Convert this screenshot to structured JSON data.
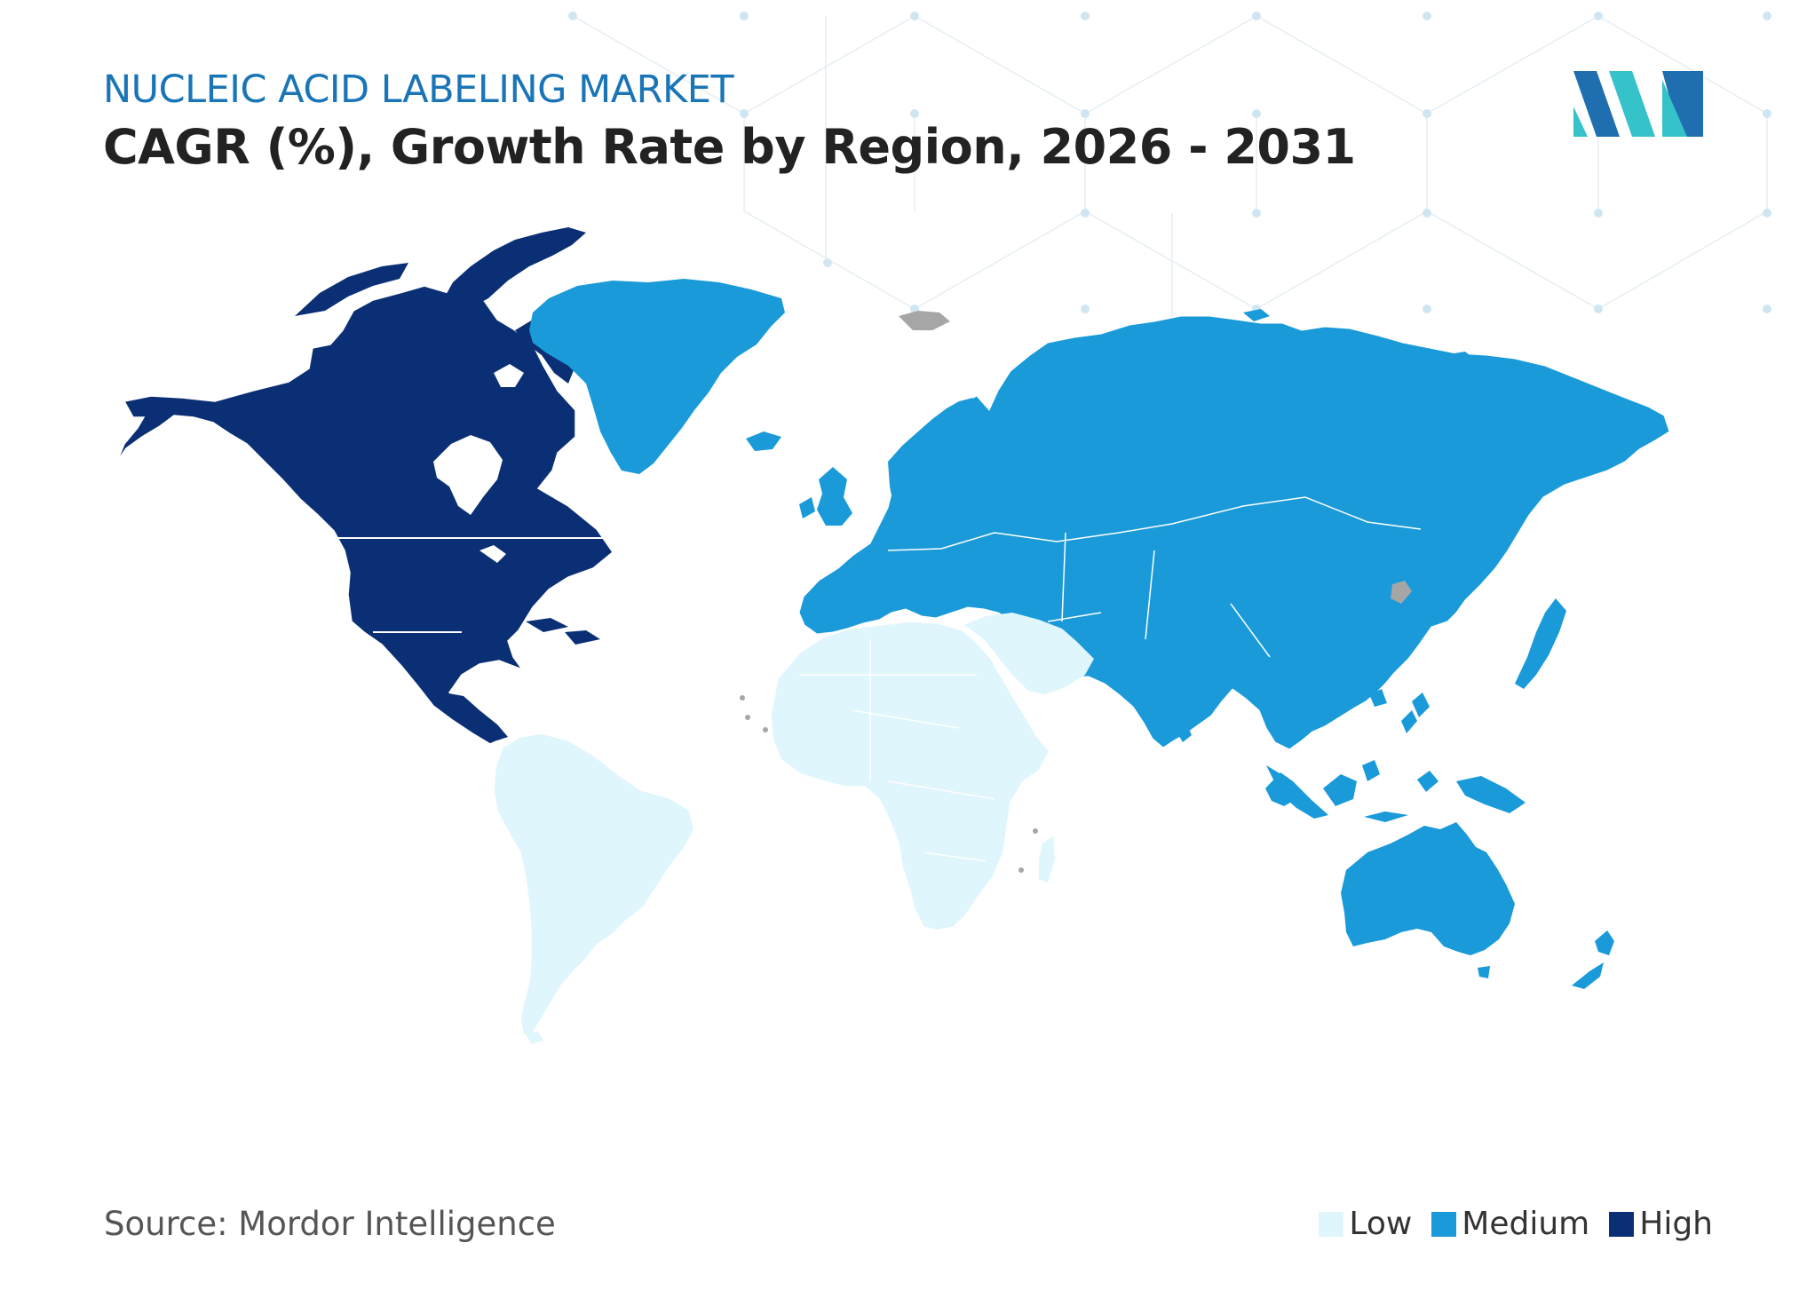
{
  "header": {
    "kicker": "NUCLEIC ACID LABELING MARKET",
    "title": "CAGR (%), Growth Rate by Region, 2026 - 2031"
  },
  "map": {
    "categories": [
      "Low",
      "Medium",
      "High"
    ],
    "colors": {
      "low": "#dff6fc",
      "medium": "#1a9ad9",
      "high": "#0b2f74",
      "no_data": "#a6a6a6",
      "border": "#ffffff"
    },
    "regions": [
      {
        "region": "North America",
        "level": "High"
      },
      {
        "region": "Greenland",
        "level": "Medium"
      },
      {
        "region": "Europe",
        "level": "Medium"
      },
      {
        "region": "Russia",
        "level": "Medium"
      },
      {
        "region": "Asia",
        "level": "Medium"
      },
      {
        "region": "Australia and New Zealand",
        "level": "Medium"
      },
      {
        "region": "South America",
        "level": "Low"
      },
      {
        "region": "Africa",
        "level": "Low"
      },
      {
        "region": "Middle East",
        "level": "Low"
      }
    ]
  },
  "footer": {
    "source": "Source: Mordor Intelligence"
  },
  "legend": {
    "items": [
      {
        "label": "Low",
        "color": "#dff6fc"
      },
      {
        "label": "Medium",
        "color": "#1a9ad9"
      },
      {
        "label": "High",
        "color": "#0b2f74"
      }
    ]
  },
  "logo": {
    "icon": "mordor-intelligence-logo",
    "colors": [
      "#1f6fb0",
      "#35c2c8"
    ]
  }
}
